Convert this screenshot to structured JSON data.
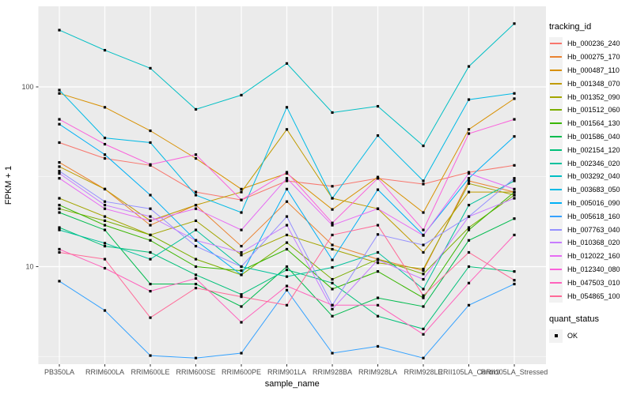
{
  "ui": {
    "y_axis_title": "FPKM + 1",
    "x_axis_title": "sample_name",
    "line_legend_title": "tracking_id",
    "point_legend_title": "quant_status",
    "point_legend_label": "OK"
  },
  "chart_data": {
    "type": "line",
    "title": "",
    "xlabel": "sample_name",
    "ylabel": "FPKM + 1",
    "y_scale": "log10",
    "y_ticks": [
      10,
      100
    ],
    "y_minor_ticks": [
      3.162,
      31.62
    ],
    "ylim": [
      2.8,
      290
    ],
    "grid": true,
    "panel_bg": "#EBEBEB",
    "grid_color": "#FFFFFF",
    "tick_text_color": "#4D4D4D",
    "point_color": "#000000",
    "point_shape": "square",
    "legend_position": "right",
    "quant_status": "OK",
    "categories": [
      "PB350LA",
      "RRIM600LA",
      "RRIM600LE",
      "RRIM600SE",
      "RRIM600PE",
      "RRIM901LA",
      "RRIM928BA",
      "RRIM928LA",
      "RRIM928LE",
      "RRII105LA_Control",
      "RRII105LA_Stressed"
    ],
    "series": [
      {
        "name": "Hb_000236_240",
        "color": "#F8766D",
        "values": [
          49,
          40,
          36.6,
          26,
          23.5,
          30,
          28,
          31,
          28.8,
          33.5,
          36.6
        ]
      },
      {
        "name": "Hb_000275_170",
        "color": "#EA8331",
        "values": [
          38,
          27,
          17,
          22,
          13,
          23,
          13.2,
          11,
          9.5,
          30,
          26
        ]
      },
      {
        "name": "Hb_000487_110",
        "color": "#D89000",
        "values": [
          92,
          77,
          57,
          40,
          27,
          33,
          20.8,
          31.5,
          20,
          58,
          86
        ]
      },
      {
        "name": "Hb_001348_070",
        "color": "#C09B00",
        "values": [
          36,
          27,
          18,
          22,
          26,
          58,
          24,
          21,
          12,
          26,
          26
        ]
      },
      {
        "name": "Hb_001352_090",
        "color": "#A3A500",
        "values": [
          24,
          19,
          15,
          18,
          11.6,
          15,
          12.5,
          10.5,
          9.7,
          29,
          25
        ]
      },
      {
        "name": "Hb_001512_060",
        "color": "#7CAE00",
        "values": [
          21,
          18,
          15,
          11,
          9,
          13.6,
          8.5,
          11,
          9.1,
          16.5,
          25
        ]
      },
      {
        "name": "Hb_001564_130",
        "color": "#39B600",
        "values": [
          22,
          17,
          14,
          10,
          9.5,
          12.5,
          7.5,
          9.4,
          6.7,
          16,
          26
        ]
      },
      {
        "name": "Hb_001586_040",
        "color": "#00BB4E",
        "values": [
          20,
          16,
          8,
          8,
          6,
          10,
          5.3,
          6.7,
          6,
          14,
          18.5
        ]
      },
      {
        "name": "Hb_002154_120",
        "color": "#00C079",
        "values": [
          16.5,
          13,
          12,
          9,
          7,
          9.6,
          8.1,
          5.3,
          4.5,
          10,
          9.4
        ]
      },
      {
        "name": "Hb_002346_020",
        "color": "#00C19C",
        "values": [
          16,
          13.5,
          11,
          16,
          10,
          8.8,
          9.9,
          12,
          7.5,
          22,
          30
        ]
      },
      {
        "name": "Hb_003292_040",
        "color": "#00BFC4",
        "values": [
          207,
          160,
          127,
          75,
          90,
          135,
          72,
          78,
          47,
          130,
          225
        ]
      },
      {
        "name": "Hb_003683_050",
        "color": "#00BAE5",
        "values": [
          96,
          52,
          49,
          25,
          20,
          77,
          24,
          53.6,
          30,
          85,
          92
        ]
      },
      {
        "name": "Hb_005016_090",
        "color": "#00B0F6",
        "values": [
          62,
          42,
          25,
          14,
          9,
          27,
          10.9,
          26.8,
          15,
          31,
          53
        ]
      },
      {
        "name": "Hb_005618_160",
        "color": "#35A2FF",
        "values": [
          8.3,
          5.7,
          3.2,
          3.1,
          3.3,
          7.4,
          3.3,
          3.6,
          3.1,
          6.1,
          8
        ]
      },
      {
        "name": "Hb_007763_040",
        "color": "#9590FF",
        "values": [
          34,
          23,
          21,
          13,
          10,
          19,
          6.1,
          15.1,
          13.2,
          19,
          31
        ]
      },
      {
        "name": "Hb_010368_020",
        "color": "#C77CFF",
        "values": [
          33,
          22,
          19,
          14,
          12,
          17,
          5.8,
          10.9,
          8.5,
          19,
          24
        ]
      },
      {
        "name": "Hb_012022_160",
        "color": "#E76BF3",
        "values": [
          31,
          21,
          18,
          21,
          16,
          31,
          17,
          21,
          14.9,
          33,
          27
        ]
      },
      {
        "name": "Hb_012340_080",
        "color": "#FA62DB",
        "values": [
          66,
          48,
          37,
          42,
          23.5,
          33.5,
          17.5,
          31,
          16,
          55,
          66
        ]
      },
      {
        "name": "Hb_047503_010",
        "color": "#FF62BC",
        "values": [
          12.5,
          9.8,
          7.3,
          8.6,
          4.9,
          7.8,
          6.1,
          6.1,
          4.2,
          8.1,
          15
        ]
      },
      {
        "name": "Hb_054865_100",
        "color": "#FF6A98",
        "values": [
          12,
          11,
          5.2,
          7.6,
          6.8,
          6.1,
          15,
          17,
          6.9,
          12,
          8.4
        ]
      }
    ]
  },
  "layout_hints": {
    "y_tick_labels": [
      "100",
      "10"
    ],
    "points_marker": "black-square"
  }
}
